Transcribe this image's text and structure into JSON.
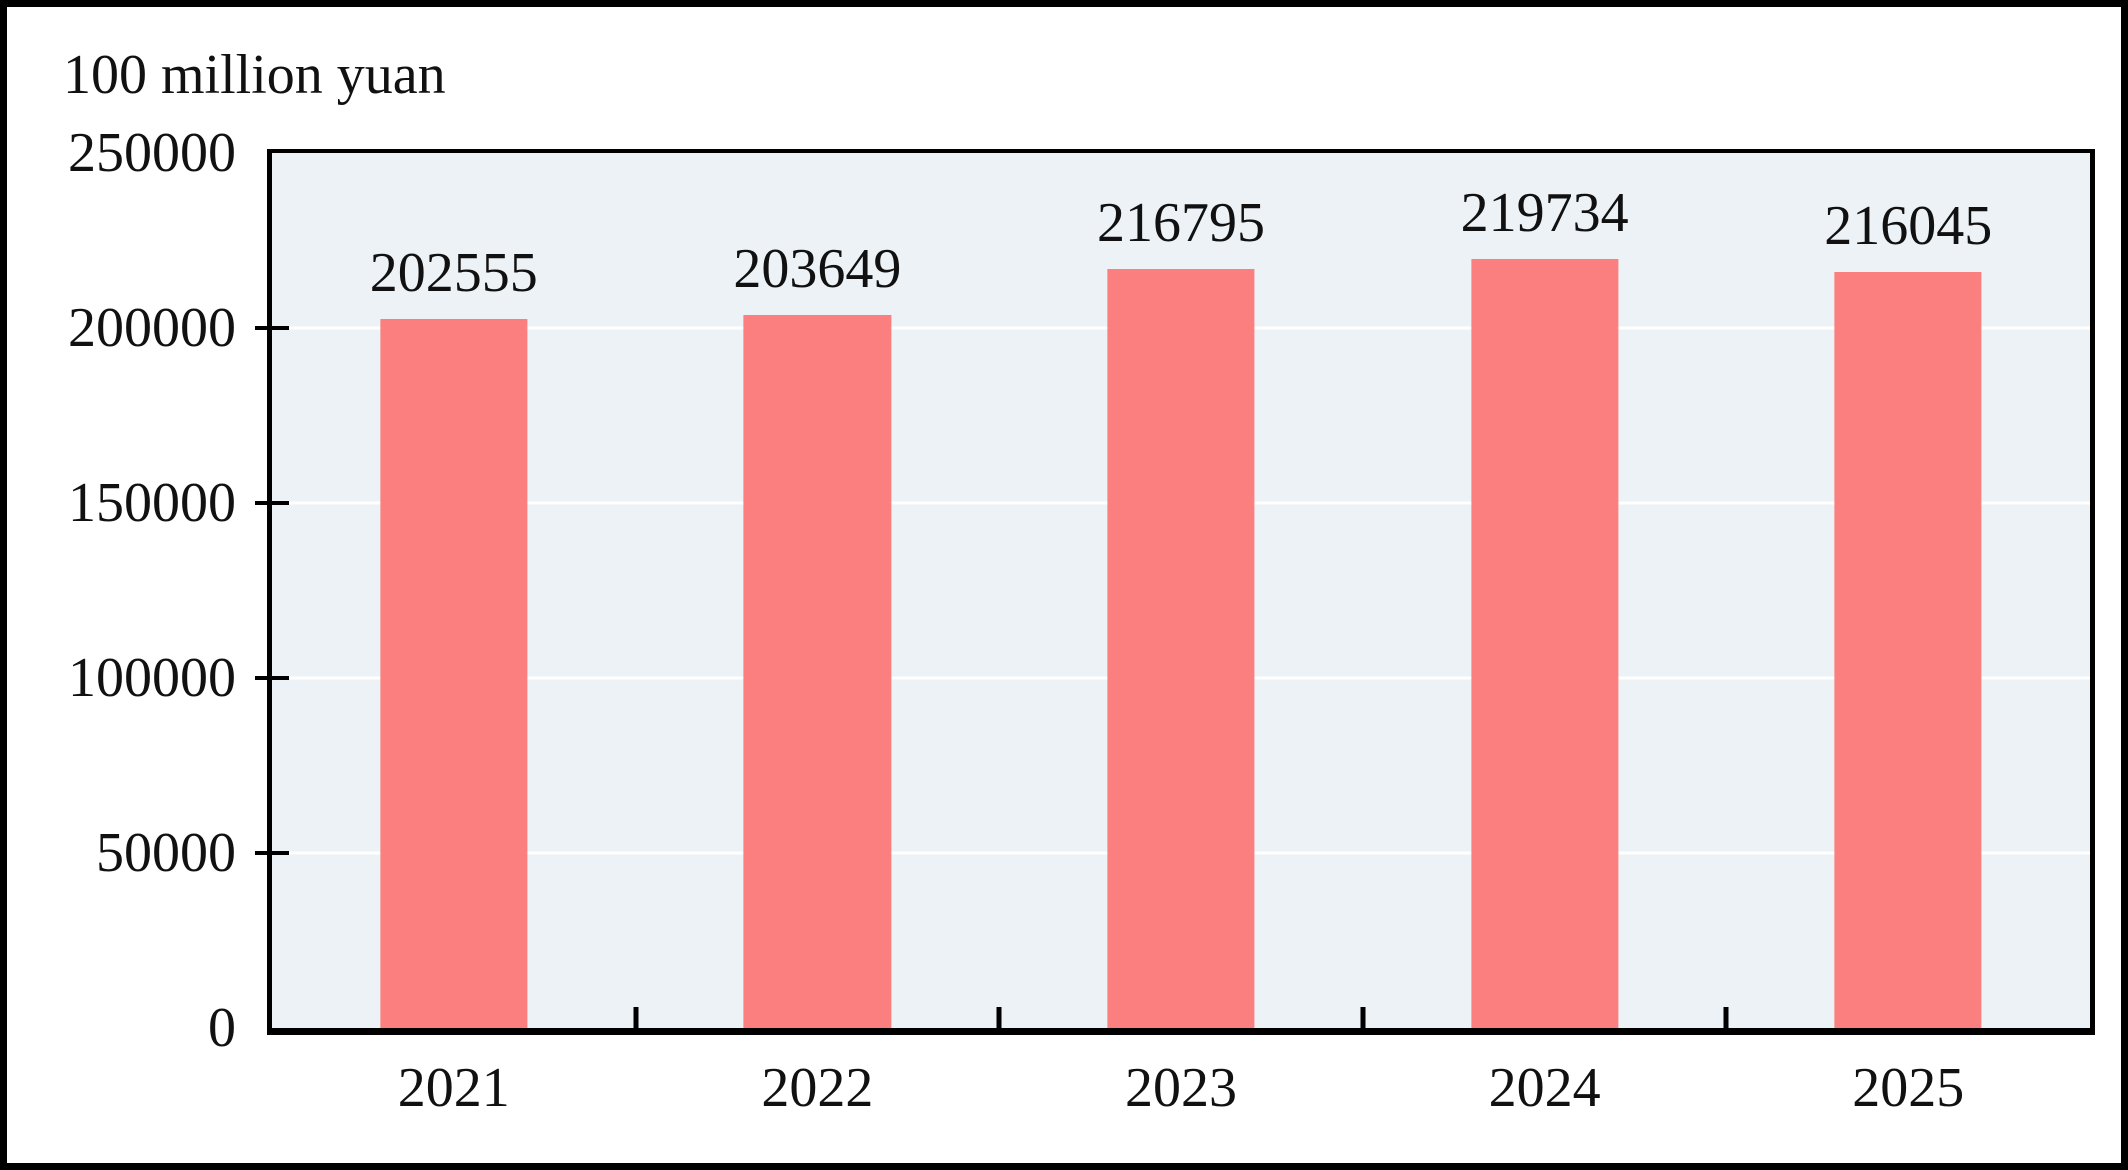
{
  "unit_label": "100 million yuan",
  "colors": {
    "bar_fill": "#FC7F7F",
    "plot_background": "#ECF2F6",
    "gridline": "#FFFFFF",
    "axis_and_frame": "#000000",
    "text": "#111111"
  },
  "chart_data": {
    "type": "bar",
    "title": "",
    "unit": "100 million yuan",
    "categories": [
      "2021",
      "2022",
      "2023",
      "2024",
      "2025"
    ],
    "values": [
      202555,
      203649,
      216795,
      219734,
      216045
    ],
    "bar_labels": [
      "202555",
      "203649",
      "216795",
      "219734",
      "216045"
    ],
    "xlabel": "",
    "ylabel": "100 million yuan",
    "ylim": [
      0,
      250000
    ],
    "yticks": [
      0,
      50000,
      100000,
      150000,
      200000,
      250000
    ],
    "grid": "horizontal white gridlines at y ticks",
    "legend": "none",
    "bar_color": "#FC7F7F",
    "plot_background": "#ECF2F6"
  }
}
